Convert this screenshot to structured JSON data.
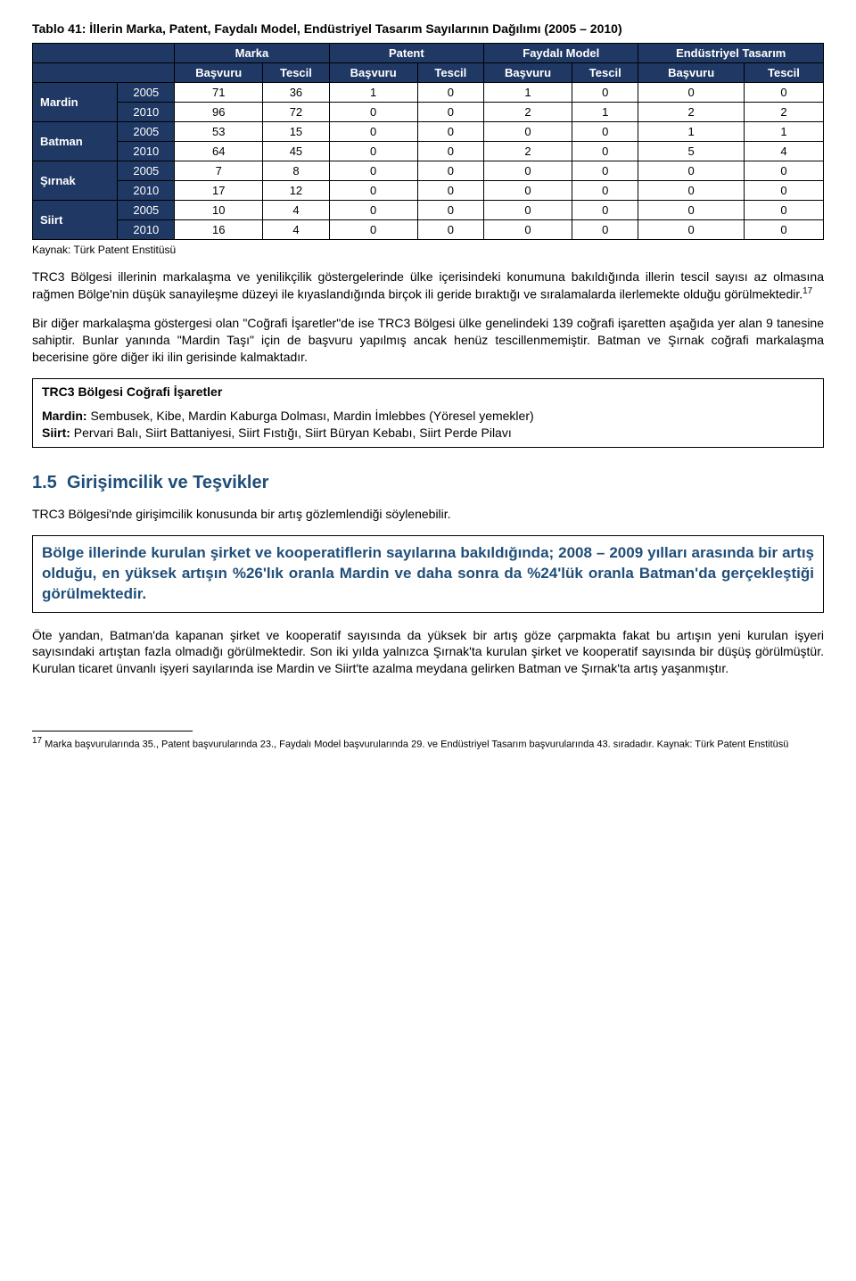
{
  "table": {
    "title": "Tablo 41: İllerin Marka, Patent, Faydalı Model, Endüstriyel Tasarım Sayılarının Dağılımı (2005 – 2010)",
    "group_headers": [
      "Marka",
      "Patent",
      "Faydalı Model",
      "Endüstriyel Tasarım"
    ],
    "sub_headers": [
      "Başvuru",
      "Tescil",
      "Başvuru",
      "Tescil",
      "Başvuru",
      "Tescil",
      "Başvuru",
      "Tescil"
    ],
    "rows": [
      {
        "province": "Mardin",
        "year": "2005",
        "vals": [
          "71",
          "36",
          "1",
          "0",
          "1",
          "0",
          "0",
          "0"
        ]
      },
      {
        "province": "",
        "year": "2010",
        "vals": [
          "96",
          "72",
          "0",
          "0",
          "2",
          "1",
          "2",
          "2"
        ]
      },
      {
        "province": "Batman",
        "year": "2005",
        "vals": [
          "53",
          "15",
          "0",
          "0",
          "0",
          "0",
          "1",
          "1"
        ]
      },
      {
        "province": "",
        "year": "2010",
        "vals": [
          "64",
          "45",
          "0",
          "0",
          "2",
          "0",
          "5",
          "4"
        ]
      },
      {
        "province": "Şırnak",
        "year": "2005",
        "vals": [
          "7",
          "8",
          "0",
          "0",
          "0",
          "0",
          "0",
          "0"
        ]
      },
      {
        "province": "",
        "year": "2010",
        "vals": [
          "17",
          "12",
          "0",
          "0",
          "0",
          "0",
          "0",
          "0"
        ]
      },
      {
        "province": "Siirt",
        "year": "2005",
        "vals": [
          "10",
          "4",
          "0",
          "0",
          "0",
          "0",
          "0",
          "0"
        ]
      },
      {
        "province": "",
        "year": "2010",
        "vals": [
          "16",
          "4",
          "0",
          "0",
          "0",
          "0",
          "0",
          "0"
        ]
      }
    ],
    "source": "Kaynak: Türk Patent Enstitüsü",
    "colors": {
      "header_bg": "#1f3864",
      "header_fg": "#ffffff",
      "border": "#000000"
    }
  },
  "paragraph1": "TRC3 Bölgesi illerinin markalaşma ve yenilikçilik göstergelerinde ülke içerisindeki konumuna bakıldığında illerin tescil sayısı az olmasına rağmen Bölge'nin düşük sanayileşme düzeyi ile kıyaslandığında birçok ili geride bıraktığı ve sıralamalarda ilerlemekte olduğu görülmektedir.",
  "footref1": "17",
  "paragraph2": "Bir diğer markalaşma göstergesi olan \"Coğrafi İşaretler\"de ise TRC3 Bölgesi ülke genelindeki 139 coğrafi işaretten aşağıda yer alan 9 tanesine sahiptir. Bunlar yanında \"Mardin Taşı\" için de başvuru yapılmış ancak henüz tescillenmemiştir. Batman ve Şırnak coğrafi markalaşma becerisine göre diğer iki ilin gerisinde kalmaktadır.",
  "box": {
    "title": "TRC3 Bölgesi Coğrafi İşaretler",
    "lines": [
      {
        "label": "Mardin:",
        "text": " Sembusek, Kibe, Mardin Kaburga Dolması, Mardin İmlebbes (Yöresel yemekler)"
      },
      {
        "label": "Siirt:",
        "text": " Pervari Balı, Siirt Battaniyesi, Siirt Fıstığı, Siirt Büryan Kebabı, Siirt Perde Pilavı"
      }
    ]
  },
  "section": {
    "number": "1.5",
    "title": "Girişimcilik ve Teşvikler"
  },
  "paragraph3": "TRC3 Bölgesi'nde girişimcilik konusunda bir artış gözlemlendiği söylenebilir.",
  "highlight": "Bölge illerinde kurulan şirket ve kooperatiflerin sayılarına bakıldığında; 2008 – 2009 yılları arasında bir artış olduğu, en yüksek artışın %26'lık oranla Mardin ve daha sonra da %24'lük oranla Batman'da gerçekleştiği görülmektedir.",
  "paragraph4": "Öte yandan, Batman'da kapanan şirket ve kooperatif sayısında da yüksek bir artış göze çarpmakta fakat bu artışın yeni kurulan işyeri sayısındaki artıştan fazla olmadığı görülmektedir. Son iki yılda yalnızca Şırnak'ta kurulan şirket ve kooperatif sayısında bir düşüş görülmüştür. Kurulan ticaret ünvanlı işyeri sayılarında ise Mardin ve Siirt'te azalma meydana gelirken Batman ve Şırnak'ta artış yaşanmıştır.",
  "footnote": {
    "num": "17",
    "text": " Marka başvurularında 35., Patent başvurularında 23., Faydalı Model başvurularında 29. ve Endüstriyel Tasarım başvurularında 43. sıradadır. Kaynak: Türk Patent Enstitüsü"
  }
}
